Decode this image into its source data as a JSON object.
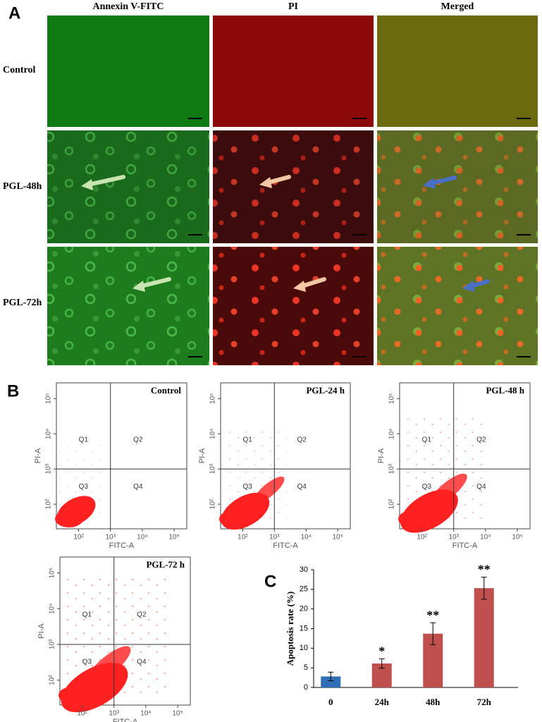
{
  "panel_labels": [
    "A",
    "B",
    "C"
  ],
  "microscopy": {
    "columns": [
      "Annexin V-FITC",
      "PI",
      "Merged"
    ],
    "rows": [
      "Control",
      "PGL-48h",
      "PGL-72h"
    ]
  },
  "chart_data": [
    {
      "type": "flow-cytometry",
      "title": "Control",
      "xlabel": "FITC-A",
      "ylabel": "PI-A",
      "log_scale": true,
      "xlim": [
        20,
        250000
      ],
      "ylim": [
        20,
        280000
      ],
      "xticks": [
        {
          "value": 100,
          "label": "10²"
        },
        {
          "value": 1000,
          "label": "10³"
        },
        {
          "value": 10000,
          "label": "10⁴"
        },
        {
          "value": 100000,
          "label": "10⁵"
        }
      ],
      "yticks": [
        {
          "value": 100,
          "label": "10²"
        },
        {
          "value": 1000,
          "label": "10³"
        },
        {
          "value": 10000,
          "label": "10⁴"
        },
        {
          "value": 100000,
          "label": "10⁵"
        }
      ],
      "gate": [
        1000,
        1000
      ],
      "quadrants": [
        "Q1",
        "Q2",
        "Q3",
        "Q4"
      ],
      "color": "#ff2020"
    },
    {
      "type": "flow-cytometry",
      "title": "PGL-24 h",
      "xlabel": "FITC-A",
      "ylabel": "PI-A",
      "log_scale": true,
      "xlim": [
        20,
        250000
      ],
      "ylim": [
        20,
        280000
      ],
      "xticks": [
        {
          "value": 100,
          "label": "10²"
        },
        {
          "value": 1000,
          "label": "10³"
        },
        {
          "value": 10000,
          "label": "10⁴"
        },
        {
          "value": 100000,
          "label": "10⁵"
        }
      ],
      "yticks": [
        {
          "value": 100,
          "label": "10²"
        },
        {
          "value": 1000,
          "label": "10³"
        },
        {
          "value": 10000,
          "label": "10⁴"
        },
        {
          "value": 100000,
          "label": "10⁵"
        }
      ],
      "gate": [
        1000,
        1000
      ],
      "quadrants": [
        "Q1",
        "Q2",
        "Q3",
        "Q4"
      ],
      "color": "#ff2020"
    },
    {
      "type": "flow-cytometry",
      "title": "PGL-48 h",
      "xlabel": "FITC-A",
      "ylabel": "PI-A",
      "log_scale": true,
      "xlim": [
        20,
        250000
      ],
      "ylim": [
        20,
        280000
      ],
      "xticks": [
        {
          "value": 100,
          "label": "10²"
        },
        {
          "value": 1000,
          "label": "10³"
        },
        {
          "value": 10000,
          "label": "10⁴"
        },
        {
          "value": 100000,
          "label": "10⁵"
        }
      ],
      "yticks": [
        {
          "value": 100,
          "label": "10²"
        },
        {
          "value": 1000,
          "label": "10³"
        },
        {
          "value": 10000,
          "label": "10⁴"
        },
        {
          "value": 100000,
          "label": "10⁵"
        }
      ],
      "gate": [
        1000,
        1000
      ],
      "quadrants": [
        "Q1",
        "Q2",
        "Q3",
        "Q4"
      ],
      "color": "#ff2020"
    },
    {
      "type": "flow-cytometry",
      "title": "PGL-72 h",
      "xlabel": "FITC-A",
      "ylabel": "PI-A",
      "log_scale": true,
      "xlim": [
        20,
        250000
      ],
      "ylim": [
        20,
        280000
      ],
      "xticks": [
        {
          "value": 100,
          "label": "10²"
        },
        {
          "value": 1000,
          "label": "10³"
        },
        {
          "value": 10000,
          "label": "10⁴"
        },
        {
          "value": 100000,
          "label": "10⁵"
        }
      ],
      "yticks": [
        {
          "value": 100,
          "label": "10²"
        },
        {
          "value": 1000,
          "label": "10³"
        },
        {
          "value": 10000,
          "label": "10⁴"
        },
        {
          "value": 100000,
          "label": "10⁵"
        }
      ],
      "gate": [
        1000,
        1000
      ],
      "quadrants": [
        "Q1",
        "Q2",
        "Q3",
        "Q4"
      ],
      "color": "#ff2020"
    },
    {
      "type": "bar",
      "ylabel": "Apoptosis rate (%)",
      "categories": [
        "0",
        "24h",
        "48h",
        "72h"
      ],
      "values": [
        2.8,
        6.1,
        13.7,
        25.3
      ],
      "errors": [
        1.1,
        1.2,
        2.8,
        2.8
      ],
      "annotations": [
        null,
        "*",
        "**",
        "**"
      ],
      "colors": [
        "#2f6fb5",
        "#c0504d",
        "#c0504d",
        "#c0504d"
      ],
      "ylim": [
        0,
        30
      ],
      "yticks": [
        0,
        5,
        10,
        15,
        20,
        25,
        30
      ]
    }
  ]
}
